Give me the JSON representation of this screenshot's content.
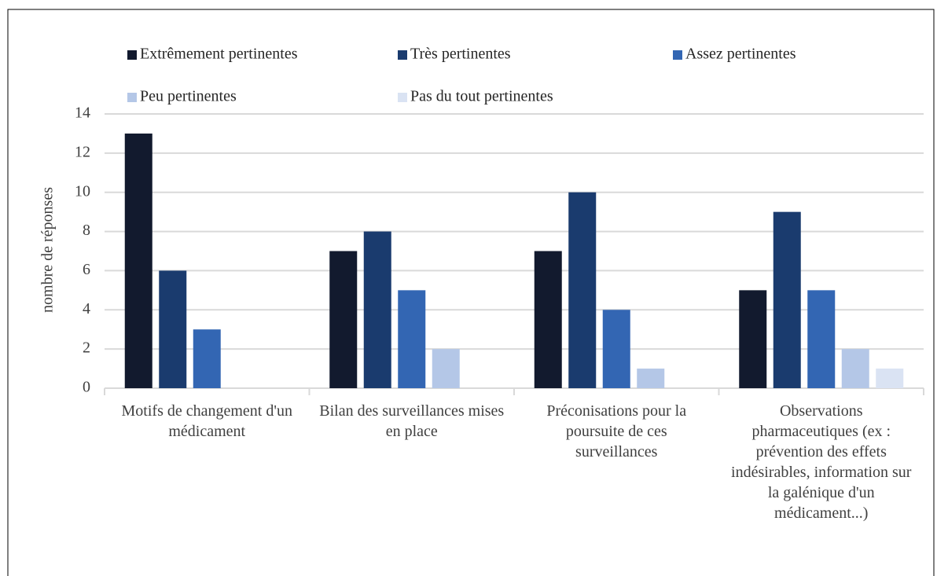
{
  "chart_data": {
    "type": "bar",
    "y_label": "nombre de réponses",
    "categories": [
      "Motifs de changement d'un médicament",
      "Bilan des surveillances mises en place",
      "Préconisations pour la poursuite de ces surveillances",
      "Observations pharmaceutiques (ex : prévention des effets indésirables, information sur la galénique d'un médicament...)"
    ],
    "series": [
      {
        "name": "Extrêmement pertinentes",
        "color": "#121a2e",
        "values": [
          13,
          7,
          7,
          5
        ]
      },
      {
        "name": "Très pertinentes",
        "color": "#1a3b6e",
        "values": [
          6,
          8,
          10,
          9
        ]
      },
      {
        "name": "Assez pertinentes",
        "color": "#3366b3",
        "values": [
          3,
          5,
          4,
          5
        ]
      },
      {
        "name": "Peu pertinentes",
        "color": "#b4c7e7",
        "values": [
          null,
          2,
          1,
          2
        ]
      },
      {
        "name": "Pas du tout pertinentes",
        "color": "#dae3f3",
        "values": [
          null,
          null,
          null,
          1
        ]
      }
    ],
    "ylim": [
      0,
      14
    ],
    "yticks": [
      0,
      2,
      4,
      6,
      8,
      10,
      12,
      14
    ],
    "grid": true,
    "legend": "top"
  }
}
